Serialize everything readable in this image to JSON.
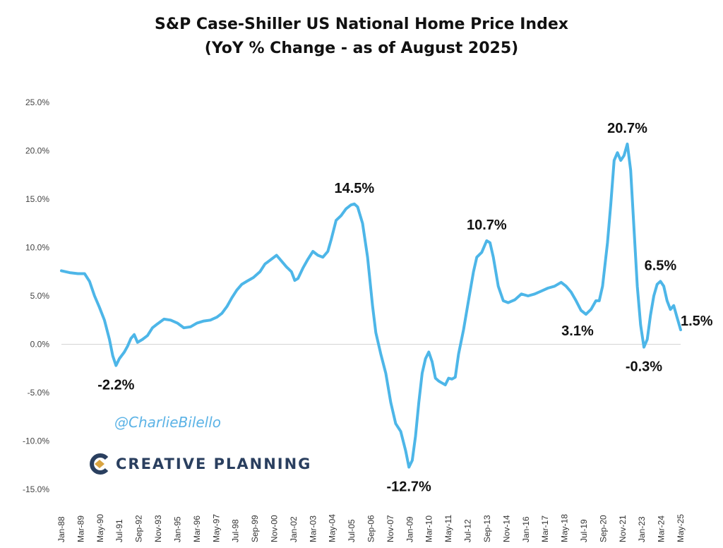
{
  "chart_data": {
    "type": "line",
    "title": "S&P Case-Shiller US National Home Price Index",
    "subtitle": "(YoY % Change - as of August 2025)",
    "xlabel": "",
    "ylabel": "",
    "ylim": [
      -15,
      25
    ],
    "xlim": [
      1988.0,
      2025.42
    ],
    "y_ticks": [
      {
        "value": 25,
        "label": "25.0%"
      },
      {
        "value": 20,
        "label": "20.0%"
      },
      {
        "value": 15,
        "label": "15.0%"
      },
      {
        "value": 10,
        "label": "10.0%"
      },
      {
        "value": 5,
        "label": "5.0%"
      },
      {
        "value": 0,
        "label": "0.0%"
      },
      {
        "value": -5,
        "label": "-5.0%"
      },
      {
        "value": -10,
        "label": "-10.0%"
      },
      {
        "value": -15,
        "label": "-15.0%"
      }
    ],
    "x_ticks": [
      "Jan-88",
      "Mar-89",
      "May-90",
      "Jul-91",
      "Sep-92",
      "Nov-93",
      "Jan-95",
      "Mar-96",
      "May-97",
      "Jul-98",
      "Sep-99",
      "Nov-00",
      "Jan-02",
      "Mar-03",
      "May-04",
      "Jul-05",
      "Sep-06",
      "Nov-07",
      "Jan-09",
      "Mar-10",
      "May-11",
      "Jul-12",
      "Sep-13",
      "Nov-14",
      "Jan-16",
      "Mar-17",
      "May-18",
      "Jul-19",
      "Sep-20",
      "Nov-21",
      "Jan-23",
      "Mar-24",
      "May-25"
    ],
    "series": [
      {
        "name": "YoY % Change",
        "color": "#4db6e8",
        "points": [
          [
            1988.0,
            7.6
          ],
          [
            1988.5,
            7.4
          ],
          [
            1989.0,
            7.3
          ],
          [
            1989.4,
            7.3
          ],
          [
            1989.7,
            6.5
          ],
          [
            1990.0,
            5.0
          ],
          [
            1990.3,
            3.8
          ],
          [
            1990.6,
            2.5
          ],
          [
            1990.9,
            0.5
          ],
          [
            1991.1,
            -1.2
          ],
          [
            1991.3,
            -2.2
          ],
          [
            1991.5,
            -1.5
          ],
          [
            1991.8,
            -0.8
          ],
          [
            1992.0,
            -0.2
          ],
          [
            1992.2,
            0.6
          ],
          [
            1992.4,
            1.0
          ],
          [
            1992.6,
            0.2
          ],
          [
            1992.9,
            0.5
          ],
          [
            1993.2,
            0.9
          ],
          [
            1993.5,
            1.7
          ],
          [
            1993.8,
            2.1
          ],
          [
            1994.2,
            2.6
          ],
          [
            1994.6,
            2.5
          ],
          [
            1995.0,
            2.2
          ],
          [
            1995.4,
            1.7
          ],
          [
            1995.8,
            1.8
          ],
          [
            1996.2,
            2.2
          ],
          [
            1996.6,
            2.4
          ],
          [
            1997.0,
            2.5
          ],
          [
            1997.4,
            2.8
          ],
          [
            1997.7,
            3.2
          ],
          [
            1998.0,
            3.9
          ],
          [
            1998.3,
            4.8
          ],
          [
            1998.6,
            5.6
          ],
          [
            1998.9,
            6.2
          ],
          [
            1999.2,
            6.5
          ],
          [
            1999.6,
            6.9
          ],
          [
            2000.0,
            7.5
          ],
          [
            2000.3,
            8.3
          ],
          [
            2000.7,
            8.8
          ],
          [
            2001.0,
            9.2
          ],
          [
            2001.3,
            8.6
          ],
          [
            2001.6,
            8.0
          ],
          [
            2001.9,
            7.5
          ],
          [
            2002.1,
            6.6
          ],
          [
            2002.3,
            6.8
          ],
          [
            2002.6,
            7.9
          ],
          [
            2002.9,
            8.8
          ],
          [
            2003.2,
            9.6
          ],
          [
            2003.5,
            9.2
          ],
          [
            2003.8,
            9.0
          ],
          [
            2004.1,
            9.6
          ],
          [
            2004.3,
            10.8
          ],
          [
            2004.6,
            12.8
          ],
          [
            2004.9,
            13.3
          ],
          [
            2005.2,
            14.0
          ],
          [
            2005.5,
            14.4
          ],
          [
            2005.7,
            14.5
          ],
          [
            2005.9,
            14.2
          ],
          [
            2006.2,
            12.5
          ],
          [
            2006.5,
            9.0
          ],
          [
            2006.8,
            4.0
          ],
          [
            2007.0,
            1.2
          ],
          [
            2007.3,
            -1.0
          ],
          [
            2007.6,
            -3.0
          ],
          [
            2007.9,
            -6.0
          ],
          [
            2008.2,
            -8.2
          ],
          [
            2008.5,
            -9.0
          ],
          [
            2008.8,
            -11.0
          ],
          [
            2009.0,
            -12.7
          ],
          [
            2009.2,
            -12.0
          ],
          [
            2009.4,
            -9.5
          ],
          [
            2009.6,
            -6.0
          ],
          [
            2009.8,
            -3.0
          ],
          [
            2010.0,
            -1.5
          ],
          [
            2010.2,
            -0.8
          ],
          [
            2010.4,
            -1.8
          ],
          [
            2010.6,
            -3.5
          ],
          [
            2010.8,
            -3.8
          ],
          [
            2011.0,
            -4.0
          ],
          [
            2011.2,
            -4.2
          ],
          [
            2011.4,
            -3.5
          ],
          [
            2011.6,
            -3.6
          ],
          [
            2011.8,
            -3.4
          ],
          [
            2012.0,
            -1.0
          ],
          [
            2012.3,
            1.5
          ],
          [
            2012.6,
            4.5
          ],
          [
            2012.9,
            7.5
          ],
          [
            2013.1,
            9.0
          ],
          [
            2013.4,
            9.5
          ],
          [
            2013.7,
            10.7
          ],
          [
            2013.9,
            10.5
          ],
          [
            2014.1,
            9.0
          ],
          [
            2014.4,
            6.0
          ],
          [
            2014.7,
            4.5
          ],
          [
            2015.0,
            4.3
          ],
          [
            2015.4,
            4.6
          ],
          [
            2015.8,
            5.2
          ],
          [
            2016.2,
            5.0
          ],
          [
            2016.6,
            5.2
          ],
          [
            2017.0,
            5.5
          ],
          [
            2017.4,
            5.8
          ],
          [
            2017.8,
            6.0
          ],
          [
            2018.2,
            6.4
          ],
          [
            2018.5,
            6.0
          ],
          [
            2018.8,
            5.4
          ],
          [
            2019.1,
            4.5
          ],
          [
            2019.4,
            3.5
          ],
          [
            2019.7,
            3.1
          ],
          [
            2020.0,
            3.6
          ],
          [
            2020.3,
            4.5
          ],
          [
            2020.5,
            4.5
          ],
          [
            2020.7,
            6.0
          ],
          [
            2021.0,
            10.5
          ],
          [
            2021.2,
            14.5
          ],
          [
            2021.4,
            19.0
          ],
          [
            2021.6,
            19.8
          ],
          [
            2021.8,
            19.0
          ],
          [
            2022.0,
            19.5
          ],
          [
            2022.2,
            20.7
          ],
          [
            2022.4,
            18.0
          ],
          [
            2022.6,
            12.0
          ],
          [
            2022.8,
            6.0
          ],
          [
            2023.0,
            2.0
          ],
          [
            2023.2,
            -0.3
          ],
          [
            2023.4,
            0.5
          ],
          [
            2023.6,
            3.0
          ],
          [
            2023.8,
            5.0
          ],
          [
            2024.0,
            6.2
          ],
          [
            2024.2,
            6.5
          ],
          [
            2024.4,
            6.0
          ],
          [
            2024.6,
            4.5
          ],
          [
            2024.8,
            3.6
          ],
          [
            2025.0,
            4.0
          ],
          [
            2025.2,
            2.8
          ],
          [
            2025.42,
            1.5
          ]
        ]
      }
    ],
    "annotations": [
      {
        "label": "-2.2%",
        "x": 1991.3,
        "y": -2.2,
        "position": "below"
      },
      {
        "label": "14.5%",
        "x": 2005.7,
        "y": 14.5,
        "position": "above"
      },
      {
        "label": "-12.7%",
        "x": 2009.0,
        "y": -12.7,
        "position": "below"
      },
      {
        "label": "10.7%",
        "x": 2013.7,
        "y": 10.7,
        "position": "above"
      },
      {
        "label": "3.1%",
        "x": 2019.7,
        "y": 3.1,
        "position": "below-left"
      },
      {
        "label": "20.7%",
        "x": 2022.2,
        "y": 20.7,
        "position": "above"
      },
      {
        "label": "-0.3%",
        "x": 2023.2,
        "y": -0.3,
        "position": "below"
      },
      {
        "label": "6.5%",
        "x": 2024.2,
        "y": 6.5,
        "position": "above"
      },
      {
        "label": "1.5%",
        "x": 2025.42,
        "y": 1.5,
        "position": "right"
      }
    ],
    "grid": false,
    "zero_line": true
  },
  "watermark": "@CharlieBilello",
  "brand": {
    "name": "CREATIVE PLANNING",
    "logo_icon": "creative-planning-logo-icon",
    "accent_color": "#2a3f5f"
  }
}
